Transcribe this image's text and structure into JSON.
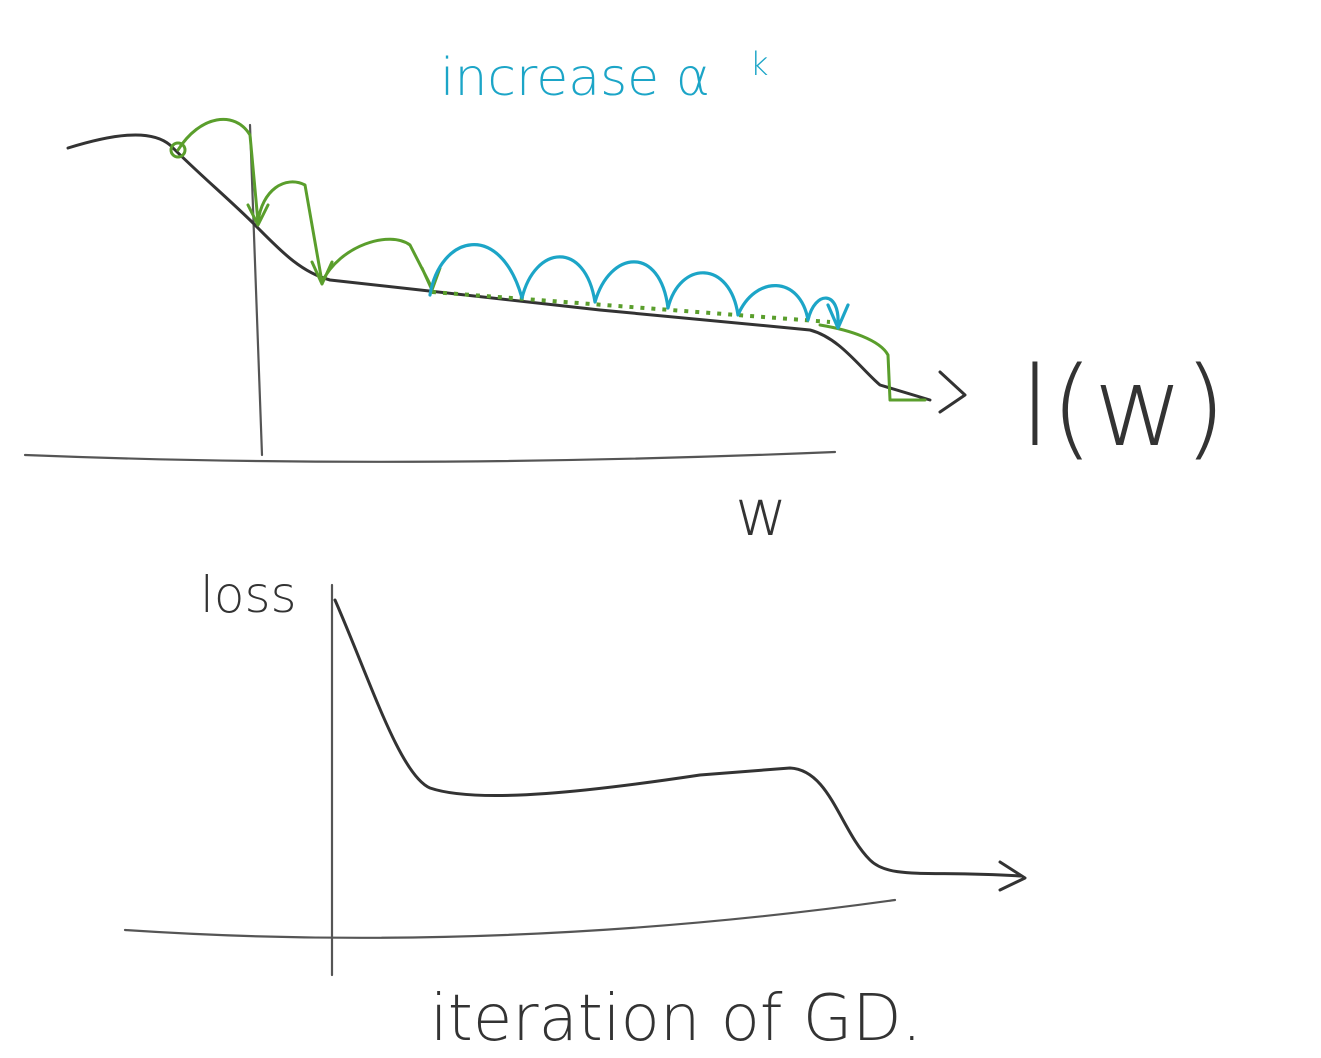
{
  "top_plot": {
    "annotation": "increase α",
    "annotation_subscript": "k",
    "curve_label": "l(w)",
    "x_label": "w"
  },
  "bottom_plot": {
    "y_label": "loss",
    "x_label": "iteration of GD."
  }
}
